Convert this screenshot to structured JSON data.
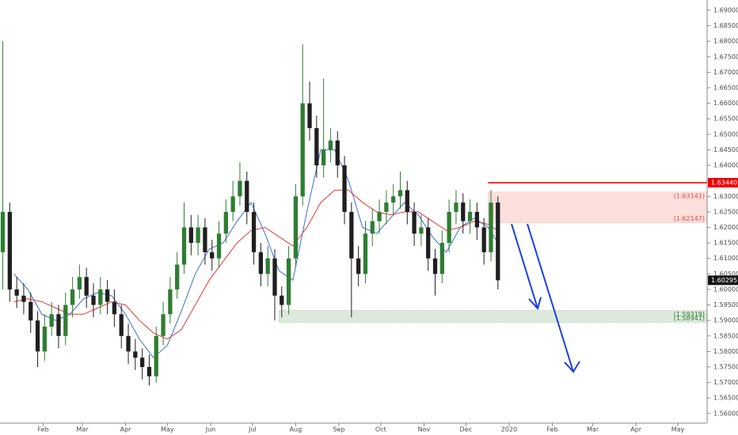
{
  "chart_data": {
    "type": "candlestick",
    "up_color": "#2e7d32",
    "down_color": "#1f1f1f",
    "x": [
      2,
      7,
      12,
      17,
      22,
      27,
      32,
      37,
      42,
      47,
      52,
      57,
      62,
      67,
      72,
      77,
      82,
      87,
      92,
      97,
      102,
      107,
      112,
      117,
      122,
      127,
      132,
      137,
      142,
      147,
      152,
      157,
      162,
      167,
      172,
      177,
      182,
      187,
      192,
      197,
      202,
      207,
      212,
      217,
      222,
      227,
      232,
      237,
      242,
      247,
      252,
      257,
      262,
      267,
      272,
      277,
      282,
      287,
      292,
      297,
      302,
      307,
      312,
      317,
      322,
      327,
      332,
      337,
      342,
      347,
      352,
      357
    ],
    "open": [
      1.612,
      1.625,
      1.6,
      1.598,
      1.596,
      1.59,
      1.58,
      1.588,
      1.592,
      1.585,
      1.595,
      1.6,
      1.604,
      1.598,
      1.595,
      1.6,
      1.596,
      1.592,
      1.585,
      1.58,
      1.578,
      1.575,
      1.572,
      1.585,
      1.592,
      1.6,
      1.608,
      1.62,
      1.615,
      1.62,
      1.612,
      1.61,
      1.618,
      1.625,
      1.63,
      1.635,
      1.625,
      1.612,
      1.605,
      1.61,
      1.598,
      1.595,
      1.61,
      1.63,
      1.66,
      1.652,
      1.64,
      1.645,
      1.648,
      1.64,
      1.625,
      1.61,
      1.605,
      1.618,
      1.622,
      1.625,
      1.628,
      1.63,
      1.632,
      1.625,
      1.618,
      1.62,
      1.61,
      1.605,
      1.615,
      1.625,
      1.628,
      1.622,
      1.625,
      1.62,
      1.612,
      1.628
    ],
    "high": [
      1.68,
      1.628,
      1.604,
      1.602,
      1.599,
      1.593,
      1.592,
      1.596,
      1.595,
      1.599,
      1.604,
      1.608,
      1.607,
      1.602,
      1.604,
      1.603,
      1.6,
      1.595,
      1.589,
      1.584,
      1.581,
      1.579,
      1.588,
      1.596,
      1.604,
      1.612,
      1.628,
      1.624,
      1.624,
      1.623,
      1.616,
      1.622,
      1.629,
      1.635,
      1.641,
      1.638,
      1.628,
      1.615,
      1.614,
      1.613,
      1.601,
      1.614,
      1.634,
      1.679,
      1.667,
      1.656,
      1.668,
      1.652,
      1.651,
      1.643,
      1.628,
      1.614,
      1.622,
      1.626,
      1.629,
      1.632,
      1.634,
      1.638,
      1.635,
      1.628,
      1.624,
      1.623,
      1.613,
      1.619,
      1.629,
      1.632,
      1.631,
      1.629,
      1.628,
      1.623,
      1.632,
      1.63
    ],
    "low": [
      1.6,
      1.596,
      1.594,
      1.592,
      1.586,
      1.575,
      1.577,
      1.585,
      1.581,
      1.582,
      1.591,
      1.597,
      1.594,
      1.591,
      1.592,
      1.592,
      1.588,
      1.581,
      1.576,
      1.574,
      1.571,
      1.569,
      1.57,
      1.582,
      1.589,
      1.597,
      1.605,
      1.611,
      1.611,
      1.608,
      1.606,
      1.607,
      1.615,
      1.622,
      1.627,
      1.621,
      1.608,
      1.601,
      1.601,
      1.59,
      1.591,
      1.592,
      1.607,
      1.627,
      1.648,
      1.636,
      1.636,
      1.641,
      1.636,
      1.621,
      1.591,
      1.601,
      1.602,
      1.614,
      1.618,
      1.621,
      1.624,
      1.626,
      1.621,
      1.614,
      1.614,
      1.606,
      1.598,
      1.602,
      1.612,
      1.621,
      1.618,
      1.618,
      1.616,
      1.608,
      1.609,
      1.6
    ],
    "close": [
      1.625,
      1.6,
      1.598,
      1.596,
      1.59,
      1.58,
      1.588,
      1.592,
      1.585,
      1.595,
      1.6,
      1.604,
      1.598,
      1.595,
      1.6,
      1.596,
      1.592,
      1.585,
      1.58,
      1.578,
      1.575,
      1.572,
      1.585,
      1.592,
      1.6,
      1.608,
      1.62,
      1.615,
      1.62,
      1.612,
      1.61,
      1.618,
      1.625,
      1.63,
      1.635,
      1.625,
      1.612,
      1.605,
      1.61,
      1.598,
      1.595,
      1.61,
      1.63,
      1.66,
      1.652,
      1.64,
      1.645,
      1.648,
      1.64,
      1.625,
      1.61,
      1.605,
      1.618,
      1.622,
      1.625,
      1.628,
      1.63,
      1.632,
      1.625,
      1.618,
      1.62,
      1.61,
      1.605,
      1.615,
      1.625,
      1.628,
      1.622,
      1.625,
      1.62,
      1.612,
      1.628,
      1.60295
    ],
    "moving_averages": [
      {
        "color": "#3b6fd6",
        "x": [
          10,
          20,
          30,
          40,
          50,
          60,
          70,
          80,
          90,
          100,
          110,
          120,
          130,
          140,
          150,
          160,
          170,
          180,
          190,
          200,
          210,
          220,
          230,
          240,
          250,
          260,
          270,
          280,
          290,
          300,
          310,
          320,
          330,
          340,
          350,
          357
        ],
        "values": [
          1.605,
          1.6,
          1.592,
          1.59,
          1.592,
          1.597,
          1.599,
          1.598,
          1.592,
          1.584,
          1.578,
          1.582,
          1.593,
          1.605,
          1.613,
          1.615,
          1.622,
          1.628,
          1.618,
          1.606,
          1.603,
          1.625,
          1.645,
          1.645,
          1.635,
          1.62,
          1.618,
          1.623,
          1.628,
          1.624,
          1.617,
          1.612,
          1.62,
          1.623,
          1.62,
          1.615
        ]
      },
      {
        "color": "#e53935",
        "x": [
          10,
          20,
          30,
          40,
          50,
          60,
          70,
          80,
          90,
          100,
          110,
          120,
          130,
          140,
          150,
          160,
          170,
          180,
          190,
          200,
          210,
          220,
          230,
          240,
          250,
          260,
          270,
          280,
          290,
          300,
          310,
          320,
          330,
          340,
          350,
          357
        ],
        "values": [
          1.596,
          1.597,
          1.596,
          1.594,
          1.592,
          1.592,
          1.594,
          1.596,
          1.595,
          1.59,
          1.586,
          1.584,
          1.587,
          1.595,
          1.603,
          1.609,
          1.615,
          1.619,
          1.62,
          1.617,
          1.614,
          1.62,
          1.628,
          1.632,
          1.632,
          1.628,
          1.625,
          1.624,
          1.625,
          1.625,
          1.622,
          1.619,
          1.62,
          1.622,
          1.621,
          1.619
        ]
      }
    ],
    "zones": [
      {
        "x_start": 350,
        "top": 1.63141,
        "bottom": 1.62147,
        "top_label": "(1.63141)",
        "bottom_label": "(1.62147)",
        "color": "#f44336"
      },
      {
        "x_start": 200,
        "top": 1.59319,
        "bottom": 1.58941,
        "top_label": "(1.59319)",
        "bottom_label": "(1.58941)",
        "color": "#2e7d32"
      }
    ],
    "level_line": {
      "value": 1.6344,
      "label": "1.63440",
      "x_start": 350,
      "color": "#f00000"
    },
    "last_price": {
      "value": 1.60295,
      "label": "1.60295"
    },
    "xlim": [
      0,
      507
    ],
    "xticks": [
      {
        "value": 31,
        "label": "Feb"
      },
      {
        "value": 59,
        "label": "Mar"
      },
      {
        "value": 90,
        "label": "Apr"
      },
      {
        "value": 120,
        "label": "May"
      },
      {
        "value": 151,
        "label": "Jun"
      },
      {
        "value": 181,
        "label": "Jul"
      },
      {
        "value": 212,
        "label": "Aug"
      },
      {
        "value": 243,
        "label": "Sep"
      },
      {
        "value": 273,
        "label": "Oct"
      },
      {
        "value": 304,
        "label": "Nov"
      },
      {
        "value": 334,
        "label": "Dec"
      },
      {
        "value": 365,
        "label": "2020"
      },
      {
        "value": 396,
        "label": "Feb"
      },
      {
        "value": 425,
        "label": "Mar"
      },
      {
        "value": 456,
        "label": "Apr"
      },
      {
        "value": 486,
        "label": "May"
      }
    ],
    "ylim": [
      1.5569,
      1.6933
    ],
    "yticks": [
      {
        "value": 1.56,
        "label": "1.56000"
      },
      {
        "value": 1.565,
        "label": "1.56500"
      },
      {
        "value": 1.57,
        "label": "1.57000"
      },
      {
        "value": 1.575,
        "label": "1.57500"
      },
      {
        "value": 1.58,
        "label": "1.58000"
      },
      {
        "value": 1.585,
        "label": "1.58500"
      },
      {
        "value": 1.59,
        "label": "1.59000"
      },
      {
        "value": 1.595,
        "label": "1.59500"
      },
      {
        "value": 1.6,
        "label": "1.60000"
      },
      {
        "value": 1.605,
        "label": "1.60500"
      },
      {
        "value": 1.61,
        "label": "1.61000"
      },
      {
        "value": 1.615,
        "label": "1.61500"
      },
      {
        "value": 1.62,
        "label": "1.62000"
      },
      {
        "value": 1.625,
        "label": "1.62500"
      },
      {
        "value": 1.63,
        "label": "1.63000"
      },
      {
        "value": 1.635,
        "label": "1.63500"
      },
      {
        "value": 1.64,
        "label": "1.64000"
      },
      {
        "value": 1.645,
        "label": "1.64500"
      },
      {
        "value": 1.65,
        "label": "1.65000"
      },
      {
        "value": 1.655,
        "label": "1.65500"
      },
      {
        "value": 1.66,
        "label": "1.66000"
      },
      {
        "value": 1.665,
        "label": "1.66500"
      },
      {
        "value": 1.67,
        "label": "1.67000"
      },
      {
        "value": 1.675,
        "label": "1.67500"
      },
      {
        "value": 1.68,
        "label": "1.68000"
      },
      {
        "value": 1.685,
        "label": "1.68500"
      },
      {
        "value": 1.69,
        "label": "1.69000"
      }
    ]
  }
}
